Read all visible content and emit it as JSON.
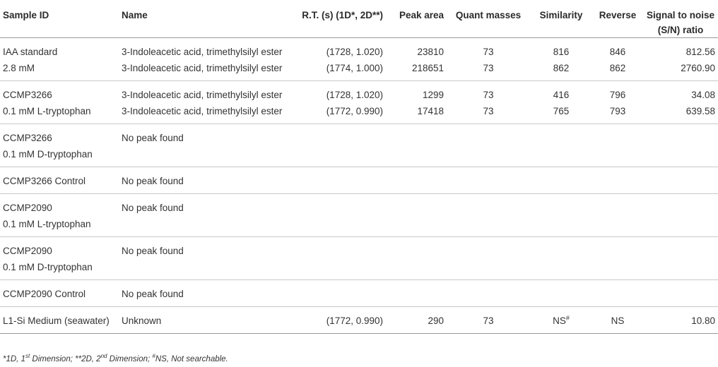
{
  "headers": {
    "sample_id": "Sample ID",
    "name": "Name",
    "rt": "R.T. (s) (1D*, 2D**)",
    "peak_area": "Peak area",
    "quant_masses": "Quant masses",
    "similarity": "Similarity",
    "reverse": "Reverse",
    "sn_line1": "Signal to noise",
    "sn_line2": "(S/N) ratio"
  },
  "groups": [
    {
      "sample_lines": [
        "IAA standard",
        "2.8 mM"
      ],
      "rows": [
        {
          "name": "3-Indoleacetic acid, trimethylsilyl ester",
          "rt": "(1728, 1.020)",
          "peak_area": "23810",
          "quant": "73",
          "similarity": "816",
          "reverse": "846",
          "sn": "812.56"
        },
        {
          "name": "3-Indoleacetic acid, trimethylsilyl ester",
          "rt": "(1774, 1.000)",
          "peak_area": "218651",
          "quant": "73",
          "similarity": "862",
          "reverse": "862",
          "sn": "2760.90"
        }
      ]
    },
    {
      "sample_lines": [
        "CCMP3266",
        "0.1 mM L-tryptophan"
      ],
      "rows": [
        {
          "name": "3-Indoleacetic acid, trimethylsilyl ester",
          "rt": "(1728, 1.020)",
          "peak_area": "1299",
          "quant": "73",
          "similarity": "416",
          "reverse": "796",
          "sn": "34.08"
        },
        {
          "name": "3-Indoleacetic acid, trimethylsilyl ester",
          "rt": "(1772, 0.990)",
          "peak_area": "17418",
          "quant": "73",
          "similarity": "765",
          "reverse": "793",
          "sn": "639.58"
        }
      ]
    },
    {
      "sample_lines": [
        "CCMP3266",
        "0.1 mM D-tryptophan"
      ],
      "rows": [
        {
          "name": "No peak found",
          "rt": "",
          "peak_area": "",
          "quant": "",
          "similarity": "",
          "reverse": "",
          "sn": ""
        }
      ]
    },
    {
      "sample_lines": [
        "CCMP3266 Control"
      ],
      "rows": [
        {
          "name": "No peak found",
          "rt": "",
          "peak_area": "",
          "quant": "",
          "similarity": "",
          "reverse": "",
          "sn": ""
        }
      ]
    },
    {
      "sample_lines": [
        "CCMP2090",
        "0.1 mM L-tryptophan"
      ],
      "rows": [
        {
          "name": "No peak found",
          "rt": "",
          "peak_area": "",
          "quant": "",
          "similarity": "",
          "reverse": "",
          "sn": ""
        }
      ]
    },
    {
      "sample_lines": [
        "CCMP2090",
        "0.1 mM D-tryptophan"
      ],
      "rows": [
        {
          "name": "No peak found",
          "rt": "",
          "peak_area": "",
          "quant": "",
          "similarity": "",
          "reverse": "",
          "sn": ""
        }
      ]
    },
    {
      "sample_lines": [
        "CCMP2090 Control"
      ],
      "rows": [
        {
          "name": "No peak found",
          "rt": "",
          "peak_area": "",
          "quant": "",
          "similarity": "",
          "reverse": "",
          "sn": ""
        }
      ]
    },
    {
      "sample_lines": [
        "L1-Si Medium (seawater)"
      ],
      "rows": [
        {
          "name": "Unknown",
          "rt": "(1772, 0.990)",
          "peak_area": "290",
          "quant": "73",
          "similarity": "NS",
          "similarity_sup": "#",
          "reverse": "NS",
          "sn": "10.80"
        }
      ]
    }
  ],
  "footnote": {
    "p1": "*1D, 1",
    "p1_sup": "st",
    "p2": " Dimension; **2D, 2",
    "p2_sup": "nd",
    "p3": " Dimension; ",
    "p3_sup": "#",
    "p4": "NS, Not searchable."
  }
}
